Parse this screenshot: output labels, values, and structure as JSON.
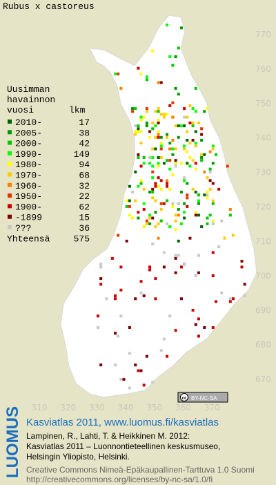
{
  "title": "Rubus x castoreus",
  "legend": {
    "heading": [
      "Uusimman",
      "havainnon",
      "vuosi"
    ],
    "count_heading": "lkm",
    "items": [
      {
        "label": "2010-",
        "count": 17,
        "color": "#006400"
      },
      {
        "label": "2005-",
        "count": 38,
        "color": "#009a00"
      },
      {
        "label": "2000-",
        "count": 42,
        "color": "#00c800"
      },
      {
        "label": "1990-",
        "count": 149,
        "color": "#00ff00"
      },
      {
        "label": "1980-",
        "count": 94,
        "color": "#ffff00"
      },
      {
        "label": "1970-",
        "count": 68,
        "color": "#ffcc00"
      },
      {
        "label": "1960-",
        "count": 32,
        "color": "#ff8000"
      },
      {
        "label": "1950-",
        "count": 22,
        "color": "#e83000"
      },
      {
        "label": "1900-",
        "count": 62,
        "color": "#cc0000"
      },
      {
        "label": "-1899",
        "count": 15,
        "color": "#800000"
      },
      {
        "label": "???",
        "count": 36,
        "color": "#c8c8c8"
      }
    ],
    "total_label": "Yhteensä",
    "total": 575
  },
  "x_labels": [
    "310",
    "320",
    "330",
    "340",
    "350",
    "360",
    "370"
  ],
  "y_labels": [
    "770",
    "760",
    "750",
    "740",
    "730",
    "720",
    "710",
    "700",
    "690",
    "680",
    "670"
  ],
  "license_badge": {
    "icon": "cc",
    "text": "BY-NC-SA"
  },
  "footer": {
    "logo": "LUOMUS",
    "heading": "Kasviatlas 2011, www.luomus.fi/kasviatlas",
    "citation": [
      "Lampinen, R., Lahti, T. & Heikkinen M. 2012:",
      "Kasviatlas 2011 – Luonnontieteellinen keskusmuseo,",
      "Helsingin Yliopisto, Helsinki."
    ],
    "license": [
      "Creative Commons Nimeä-Epäkaupallinen-Tarttuva 1.0 Suomi",
      "http://creativecommons.org/licenses/by-nc-sa/1.0/fi"
    ]
  }
}
